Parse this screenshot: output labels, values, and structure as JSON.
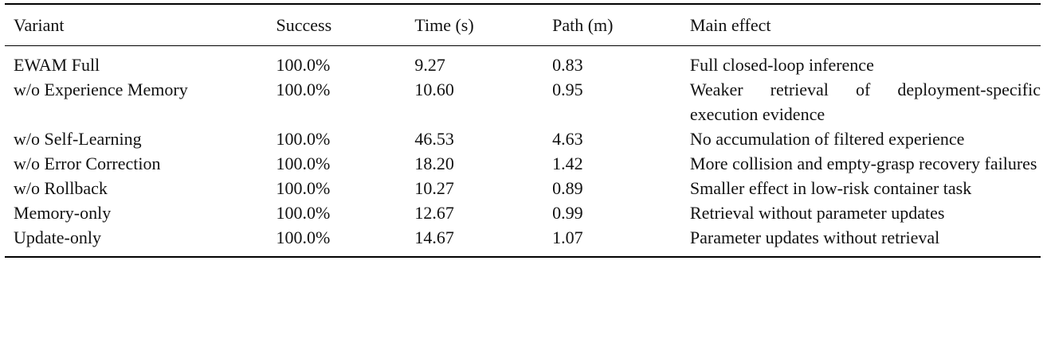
{
  "table": {
    "header": [
      "Variant",
      "Success",
      "Time (s)",
      "Path (m)",
      "Main effect"
    ],
    "rows": [
      [
        "EWAM Full",
        "100.0%",
        "9.27",
        "0.83",
        "Full closed-loop inference"
      ],
      [
        "w/o Experience Memory",
        "100.0%",
        "10.60",
        "0.95",
        "Weaker retrieval of deployment-specific execution evidence"
      ],
      [
        "w/o Self-Learning",
        "100.0%",
        "46.53",
        "4.63",
        "No accumulation of filtered experience"
      ],
      [
        "w/o Error Correction",
        "100.0%",
        "18.20",
        "1.42",
        "More collision and empty-grasp recovery failures"
      ],
      [
        "w/o Rollback",
        "100.0%",
        "10.27",
        "0.89",
        "Smaller effect in low-risk container task"
      ],
      [
        "Memory-only",
        "100.0%",
        "12.67",
        "0.99",
        "Retrieval without parameter updates"
      ],
      [
        "Update-only",
        "100.0%",
        "14.67",
        "1.07",
        "Parameter updates without retrieval"
      ]
    ]
  }
}
